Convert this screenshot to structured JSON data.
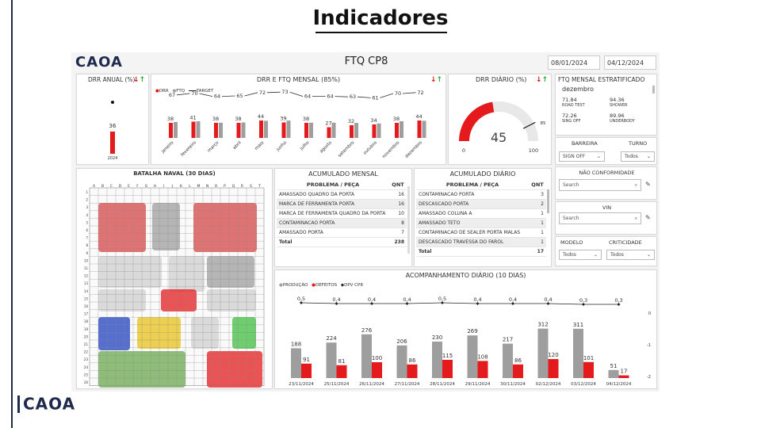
{
  "slide": {
    "title": "Indicadores",
    "logo_top": "CAOA",
    "logo_bottom": "CAOA"
  },
  "dashboard": {
    "title": "FTQ CP8",
    "date_from": "08/01/2024",
    "date_to": "04/12/2024"
  },
  "drr_anual": {
    "title": "DRR ANUAL (%)",
    "value": "36",
    "year": "2024",
    "bar_value": 36
  },
  "ftq_mensal": {
    "title": "DRR E FTQ MENSAL (85%)",
    "legend": [
      "DRR",
      "FTQ",
      "TARGET"
    ],
    "months": [
      "janeiro",
      "fevereiro",
      "março",
      "abril",
      "maio",
      "junho",
      "julho",
      "agosto",
      "setembro",
      "outubro",
      "novembro",
      "dezembro"
    ],
    "drr": [
      38,
      41,
      38,
      38,
      44,
      39,
      38,
      27,
      32,
      34,
      38,
      44
    ],
    "ftq": [
      67,
      70,
      64,
      65,
      72,
      73,
      64,
      64,
      63,
      61,
      70,
      72
    ]
  },
  "drr_diario": {
    "title": "DRR DIÁRIO (%)",
    "value": "45",
    "min": "0",
    "max": "100",
    "target": "85",
    "gauge_value": 45
  },
  "ftq_estratificado": {
    "title": "FTQ MENSAL ESTRATIFICADO",
    "month": "dezembro",
    "items": [
      {
        "value": "71.84",
        "label": "ROAD TEST"
      },
      {
        "value": "94.36",
        "label": "SHOWER"
      },
      {
        "value": "72.26",
        "label": "SING OFF"
      },
      {
        "value": "89.96",
        "label": "UNDERBODY"
      }
    ]
  },
  "filters": {
    "barreira_label": "BARREIRA",
    "barreira_value": "SIGN OFF",
    "turno_label": "TURNO",
    "turno_value": "Todos",
    "nao_conformidade_label": "NÃO CONFORMIDADE",
    "search_placeholder": "Search",
    "vin_label": "VIN",
    "modelo_label": "MODELO",
    "modelo_value": "Todos",
    "criticidade_label": "CRITICIDADE",
    "criticidade_value": "Todos"
  },
  "batalha": {
    "title": "BATALHA NAVAL (30 DIAS)",
    "cols": [
      "A",
      "B",
      "C",
      "D",
      "E",
      "F",
      "G",
      "H",
      "I",
      "J",
      "K",
      "L",
      "M",
      "N",
      "O",
      "P",
      "Q",
      "R",
      "S",
      "T"
    ]
  },
  "acum_mensal": {
    "title": "ACUMULADO MENSAL",
    "col1": "PROBLEMA / PEÇA",
    "col2": "QNT",
    "rows": [
      {
        "name": "AMASSADO QUADRO DA PORTA",
        "qnt": "16"
      },
      {
        "name": "MARCA DE FERRAMENTA PORTA",
        "qnt": "16"
      },
      {
        "name": "MARCA DE FERRAMENTA QUADRO DA PORTA",
        "qnt": "10"
      },
      {
        "name": "CONTAMINACAO PORTA",
        "qnt": "8"
      },
      {
        "name": "AMASSADO PORTA",
        "qnt": "7"
      }
    ],
    "total_label": "Total",
    "total": "238"
  },
  "acum_diario": {
    "title": "ACUMULADO DIÁRIO",
    "col1": "PROBLEMA / PEÇA",
    "col2": "QNT",
    "rows": [
      {
        "name": "CONTAMINACAO PORTA",
        "qnt": "3"
      },
      {
        "name": "DESCASCADO PORTA",
        "qnt": "2"
      },
      {
        "name": "AMASSADO COLUNA A",
        "qnt": "1"
      },
      {
        "name": "AMASSADO TETO",
        "qnt": "1"
      },
      {
        "name": "CONTAMINACAO DE SEALER PORTA MALAS",
        "qnt": "1"
      },
      {
        "name": "DESCASCADO TRAVESSA DO FAROL",
        "qnt": "1"
      }
    ],
    "total_label": "Total",
    "total": "17"
  },
  "chart_data": {
    "type": "bar",
    "title": "ACOMPANHAMENTO DIÁRIO (10 DIAS)",
    "legend": [
      "PRODUÇÃO",
      "DEFEITOS",
      "DPV CP8"
    ],
    "categories": [
      "23/11/2024",
      "25/11/2024",
      "26/11/2024",
      "27/11/2024",
      "28/11/2024",
      "29/11/2024",
      "30/11/2024",
      "02/12/2024",
      "03/12/2024",
      "04/12/2024"
    ],
    "series": [
      {
        "name": "PRODUÇÃO",
        "values": [
          188,
          224,
          276,
          206,
          230,
          269,
          217,
          312,
          311,
          51
        ]
      },
      {
        "name": "DEFEITOS",
        "values": [
          91,
          81,
          100,
          86,
          115,
          108,
          86,
          120,
          101,
          17
        ]
      },
      {
        "name": "DPV CP8",
        "values": [
          "0,5",
          "0,4",
          "0,4",
          "0,4",
          "0,5",
          "0,4",
          "0,4",
          "0,4",
          "0,3",
          "0,3"
        ]
      }
    ],
    "right_axis_ticks": [
      "0",
      "-1",
      "-2"
    ],
    "colors": {
      "producao": "#9e9e9e",
      "defeitos": "#e41a1c",
      "dpv": "#222222"
    }
  }
}
